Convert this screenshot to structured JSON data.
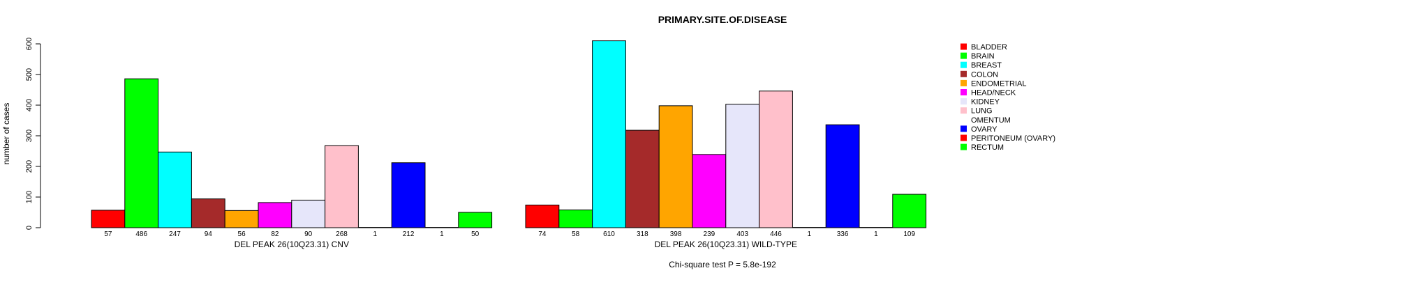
{
  "chart_data": {
    "type": "bar",
    "title": "PRIMARY.SITE.OF.DISEASE",
    "ylabel": "number of cases",
    "ylim": [
      0,
      600
    ],
    "yticks": [
      0,
      100,
      200,
      300,
      400,
      500,
      600
    ],
    "ytick_labels": [
      "0",
      "100",
      "200",
      "300",
      "400",
      "500",
      "600"
    ],
    "categories": [
      "BLADDER",
      "BRAIN",
      "BREAST",
      "COLON",
      "ENDOMETRIAL",
      "HEAD/NECK",
      "KIDNEY",
      "LUNG",
      "OMENTUM",
      "OVARY",
      "PERITONEUM (OVARY)",
      "RECTUM"
    ],
    "colors": [
      "#ff0000",
      "#00ff00",
      "#00ffff",
      "#a52a2a",
      "#ffa500",
      "#ff00ff",
      "#e6e6fa",
      "#ffc0cb",
      "#ffffff",
      "#0000ff",
      "#ff0000",
      "#00ff00"
    ],
    "groups": [
      {
        "name": "DEL PEAK 26(10Q23.31) CNV",
        "values": [
          57,
          486,
          247,
          94,
          56,
          82,
          90,
          268,
          1,
          212,
          1,
          50
        ],
        "value_labels": [
          "57",
          "486",
          "247",
          "94",
          "56",
          "82",
          "90",
          "268",
          "1",
          "212",
          "1",
          "50"
        ]
      },
      {
        "name": "DEL PEAK 26(10Q23.31) WILD-TYPE",
        "values": [
          74,
          58,
          610,
          318,
          398,
          239,
          403,
          446,
          1,
          336,
          1,
          109
        ],
        "value_labels": [
          "74",
          "58",
          "610",
          "318",
          "398",
          "239",
          "403",
          "446",
          "1",
          "336",
          "1",
          "109"
        ]
      }
    ],
    "legend_position": "right",
    "footnote": "Chi-square test P = 5.8e-192"
  }
}
